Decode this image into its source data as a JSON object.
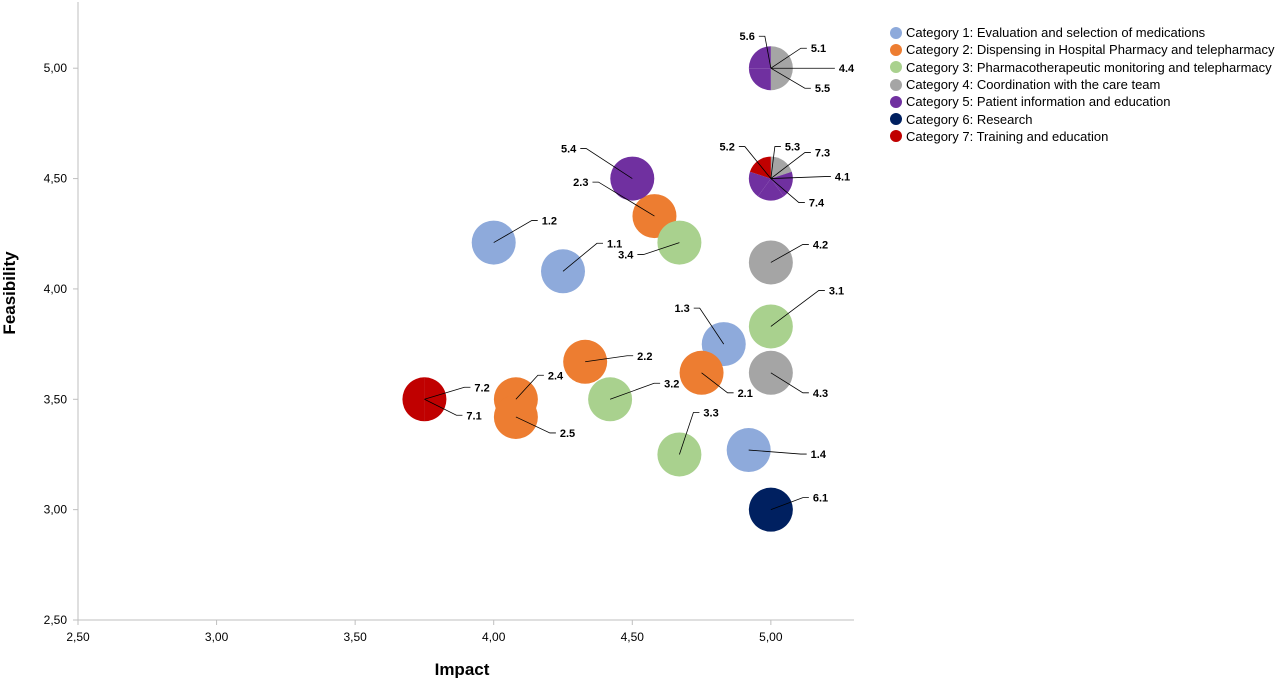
{
  "chart_data": {
    "type": "scatter",
    "xlabel": "Impact",
    "ylabel": "Feasibility",
    "xlim": [
      2.5,
      5.3
    ],
    "ylim": [
      2.5,
      5.3
    ],
    "x_ticks": [
      "2,50",
      "3,00",
      "3,50",
      "4,00",
      "4,50",
      "5,00"
    ],
    "y_ticks": [
      "2,50",
      "3,00",
      "3,50",
      "4,00",
      "4,50",
      "5,00"
    ],
    "grid": false,
    "legend_position": "top-right",
    "categories": [
      {
        "id": 1,
        "name": "Category 1: Evaluation and selection of medications",
        "color": "#8EAADB"
      },
      {
        "id": 2,
        "name": "Category 2: Dispensing in Hospital Pharmacy and telepharmacy",
        "color": "#ED7D31"
      },
      {
        "id": 3,
        "name": "Category 3: Pharmacotherapeutic monitoring and telepharmacy",
        "color": "#A9D18E"
      },
      {
        "id": 4,
        "name": "Category 4: Coordination with the care team",
        "color": "#A5A5A5"
      },
      {
        "id": 5,
        "name": "Category 5: Patient information and education",
        "color": "#7030A0"
      },
      {
        "id": 6,
        "name": "Category 6: Research",
        "color": "#002060"
      },
      {
        "id": 7,
        "name": "Category 7: Training and education",
        "color": "#C00000"
      }
    ],
    "points": [
      {
        "label": "1.1",
        "category": 1,
        "x": 4.25,
        "y": 4.08
      },
      {
        "label": "1.2",
        "category": 1,
        "x": 4.0,
        "y": 4.21
      },
      {
        "label": "1.3",
        "category": 1,
        "x": 4.83,
        "y": 3.75
      },
      {
        "label": "1.4",
        "category": 1,
        "x": 4.92,
        "y": 3.27
      },
      {
        "label": "2.1",
        "category": 2,
        "x": 4.75,
        "y": 3.62
      },
      {
        "label": "2.2",
        "category": 2,
        "x": 4.33,
        "y": 3.67
      },
      {
        "label": "2.3",
        "category": 2,
        "x": 4.58,
        "y": 4.33
      },
      {
        "label": "2.4",
        "category": 2,
        "x": 4.08,
        "y": 3.5
      },
      {
        "label": "2.5",
        "category": 2,
        "x": 4.08,
        "y": 3.42
      },
      {
        "label": "3.1",
        "category": 3,
        "x": 5.0,
        "y": 3.83
      },
      {
        "label": "3.2",
        "category": 3,
        "x": 4.42,
        "y": 3.5
      },
      {
        "label": "3.3",
        "category": 3,
        "x": 4.67,
        "y": 3.25
      },
      {
        "label": "3.4",
        "category": 3,
        "x": 4.67,
        "y": 4.21
      },
      {
        "label": "4.1",
        "category": 4,
        "x": 5.0,
        "y": 4.5
      },
      {
        "label": "4.2",
        "category": 4,
        "x": 5.0,
        "y": 4.12
      },
      {
        "label": "4.3",
        "category": 4,
        "x": 5.0,
        "y": 3.62
      },
      {
        "label": "4.4",
        "category": 4,
        "x": 5.0,
        "y": 5.0
      },
      {
        "label": "5.1",
        "category": 4,
        "x": 5.0,
        "y": 5.0
      },
      {
        "label": "5.2",
        "category": 5,
        "x": 5.0,
        "y": 4.5
      },
      {
        "label": "5.3",
        "category": 5,
        "x": 5.0,
        "y": 4.5
      },
      {
        "label": "5.4",
        "category": 5,
        "x": 4.5,
        "y": 4.5
      },
      {
        "label": "5.5",
        "category": 5,
        "x": 5.0,
        "y": 5.0
      },
      {
        "label": "5.6",
        "category": 5,
        "x": 5.0,
        "y": 5.0
      },
      {
        "label": "6.1",
        "category": 6,
        "x": 5.0,
        "y": 3.0
      },
      {
        "label": "7.1",
        "category": 7,
        "x": 3.75,
        "y": 3.5
      },
      {
        "label": "7.2",
        "category": 7,
        "x": 3.75,
        "y": 3.5
      },
      {
        "label": "7.3",
        "category": 5,
        "x": 5.0,
        "y": 4.5
      },
      {
        "label": "7.4",
        "category": 7,
        "x": 5.0,
        "y": 4.5
      }
    ]
  }
}
